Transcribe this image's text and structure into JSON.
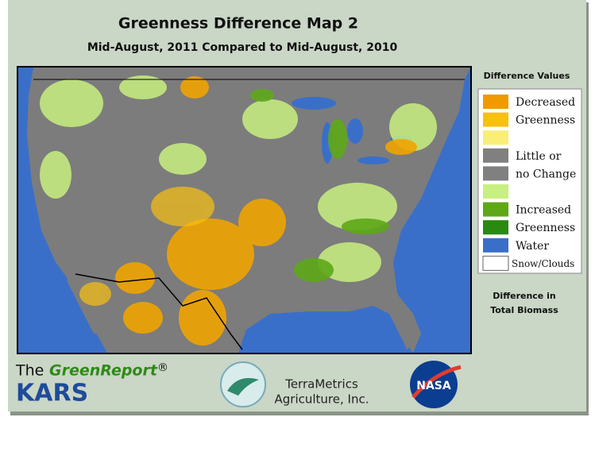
{
  "header": {
    "title": "Greenness Difference Map 2",
    "subtitle": "Mid-August, 2011 Compared to Mid-August, 2010"
  },
  "legend": {
    "title": "Difference Values",
    "rows": [
      {
        "color": "#f09a00",
        "label": "Decreased"
      },
      {
        "color": "#f8c010",
        "label": "Greenness"
      },
      {
        "color": "#f8ee78",
        "label": null
      },
      {
        "color": "#808080",
        "label": "Little or"
      },
      {
        "color": "#808080",
        "label": "no Change"
      },
      {
        "color": "#c8f080",
        "label": null
      },
      {
        "color": "#5ea818",
        "label": "Increased"
      },
      {
        "color": "#2a8a10",
        "label": "Greenness"
      },
      {
        "color": "#3a6fc9",
        "label": "Water"
      },
      {
        "color": "#ffffff",
        "label": "Snow/Clouds"
      }
    ],
    "caption": [
      "Difference in",
      "Total Biomass"
    ]
  },
  "footer": {
    "prefix": "The",
    "brand": "GreenReport",
    "mark": "®",
    "org": "KARS",
    "company": [
      "TerraMetrics",
      "Agriculture, Inc."
    ],
    "agency": "NASA"
  }
}
